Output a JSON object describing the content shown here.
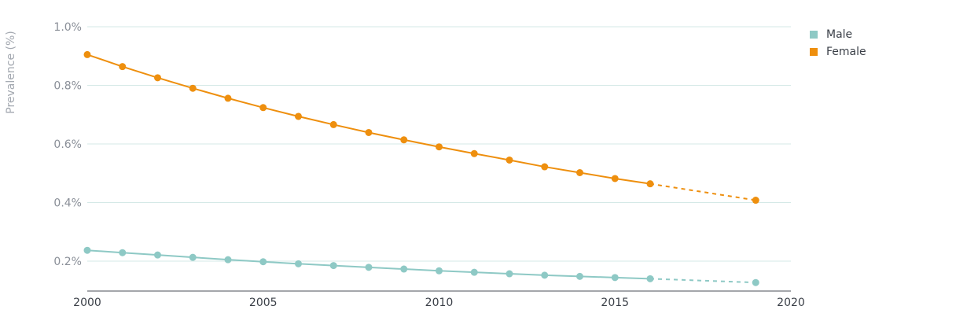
{
  "chart_data": {
    "type": "line",
    "ylabel": "Prevalence (%)",
    "xlabel": "",
    "title": "",
    "xlim": [
      2000,
      2020
    ],
    "ylim": [
      0.1,
      1.0
    ],
    "x_ticks": [
      "2000",
      "2005",
      "2010",
      "2015",
      "2020"
    ],
    "y_ticks": [
      {
        "value": 1.0,
        "label": "1.0%"
      },
      {
        "value": 0.8,
        "label": "0.8%"
      },
      {
        "value": 0.6,
        "label": "0.6%"
      },
      {
        "value": 0.4,
        "label": "0.4%"
      },
      {
        "value": 0.2,
        "label": "0.2%"
      }
    ],
    "grid": "horizontal",
    "legend_position": "top-right",
    "series": [
      {
        "name": "Male",
        "color": "#8ec9c5",
        "x": [
          2000,
          2001,
          2002,
          2003,
          2004,
          2005,
          2006,
          2007,
          2008,
          2009,
          2010,
          2011,
          2012,
          2013,
          2014,
          2015,
          2016,
          2019
        ],
        "values": [
          0.237,
          0.229,
          0.221,
          0.213,
          0.205,
          0.198,
          0.191,
          0.185,
          0.179,
          0.173,
          0.167,
          0.162,
          0.157,
          0.152,
          0.148,
          0.144,
          0.14,
          0.127
        ],
        "dashed_from": 2016
      },
      {
        "name": "Female",
        "color": "#ee8f0e",
        "x": [
          2000,
          2001,
          2002,
          2003,
          2004,
          2005,
          2006,
          2007,
          2008,
          2009,
          2010,
          2011,
          2012,
          2013,
          2014,
          2015,
          2016,
          2019
        ],
        "values": [
          0.905,
          0.864,
          0.826,
          0.79,
          0.756,
          0.724,
          0.694,
          0.666,
          0.639,
          0.614,
          0.59,
          0.567,
          0.545,
          0.522,
          0.502,
          0.482,
          0.464,
          0.408
        ],
        "dashed_from": 2016
      }
    ]
  }
}
